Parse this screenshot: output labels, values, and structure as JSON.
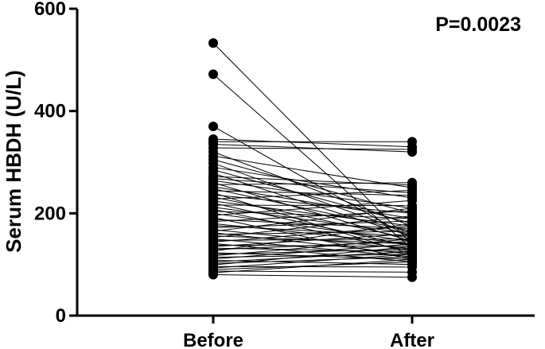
{
  "chart_data": {
    "type": "scatter",
    "subtype": "before-after paired",
    "ylabel": "Serum HBDH (U/L)",
    "xlabel": "",
    "categories": [
      "Before",
      "After"
    ],
    "ylim": [
      0,
      600
    ],
    "yticks": [
      0,
      200,
      400,
      600
    ],
    "annotation": "P=0.0023",
    "grid": false,
    "marker_color": "#000000",
    "pairs": [
      [
        533,
        140
      ],
      [
        472,
        130
      ],
      [
        370,
        150
      ],
      [
        345,
        330
      ],
      [
        340,
        340
      ],
      [
        335,
        320
      ],
      [
        328,
        325
      ],
      [
        320,
        175
      ],
      [
        312,
        250
      ],
      [
        305,
        200
      ],
      [
        298,
        160
      ],
      [
        290,
        230
      ],
      [
        285,
        180
      ],
      [
        278,
        155
      ],
      [
        272,
        255
      ],
      [
        268,
        240
      ],
      [
        264,
        210
      ],
      [
        260,
        145
      ],
      [
        256,
        260
      ],
      [
        252,
        190
      ],
      [
        248,
        165
      ],
      [
        244,
        235
      ],
      [
        240,
        120
      ],
      [
        236,
        200
      ],
      [
        232,
        150
      ],
      [
        228,
        245
      ],
      [
        224,
        175
      ],
      [
        220,
        135
      ],
      [
        216,
        215
      ],
      [
        212,
        160
      ],
      [
        208,
        125
      ],
      [
        204,
        190
      ],
      [
        200,
        145
      ],
      [
        196,
        225
      ],
      [
        192,
        110
      ],
      [
        188,
        170
      ],
      [
        184,
        205
      ],
      [
        180,
        140
      ],
      [
        176,
        155
      ],
      [
        172,
        185
      ],
      [
        168,
        130
      ],
      [
        165,
        210
      ],
      [
        162,
        120
      ],
      [
        159,
        165
      ],
      [
        156,
        140
      ],
      [
        153,
        195
      ],
      [
        150,
        115
      ],
      [
        147,
        150
      ],
      [
        144,
        175
      ],
      [
        141,
        105
      ],
      [
        138,
        135
      ],
      [
        135,
        160
      ],
      [
        132,
        125
      ],
      [
        129,
        145
      ],
      [
        126,
        180
      ],
      [
        123,
        110
      ],
      [
        120,
        130
      ],
      [
        117,
        150
      ],
      [
        114,
        120
      ],
      [
        111,
        140
      ],
      [
        108,
        100
      ],
      [
        105,
        125
      ],
      [
        102,
        115
      ],
      [
        99,
        135
      ],
      [
        96,
        95
      ],
      [
        93,
        120
      ],
      [
        90,
        105
      ],
      [
        87,
        85
      ],
      [
        84,
        110
      ],
      [
        80,
        75
      ]
    ]
  }
}
